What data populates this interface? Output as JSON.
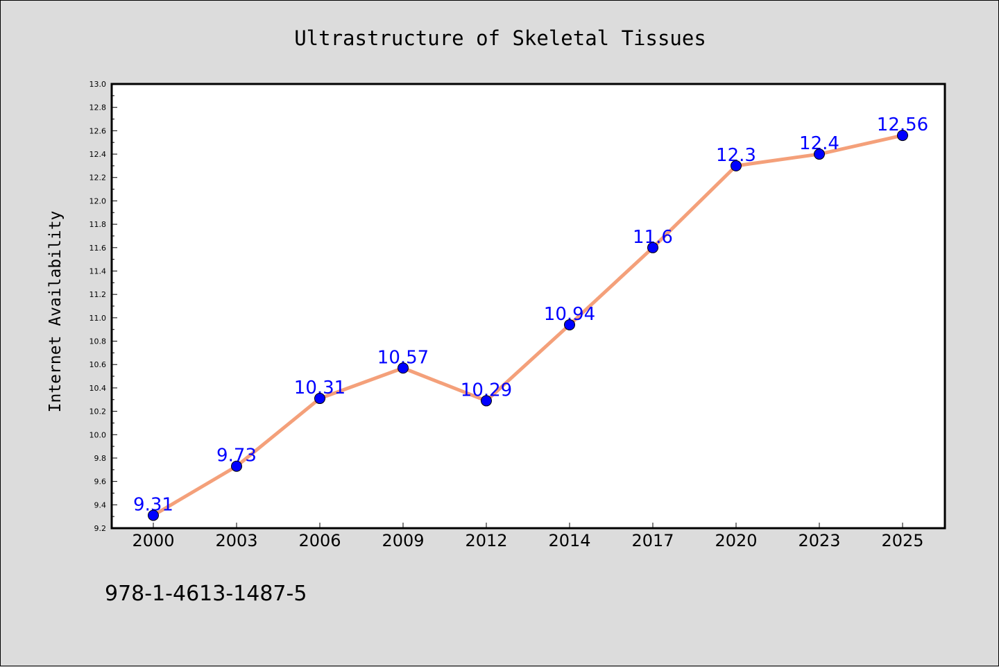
{
  "chart_data": {
    "type": "line",
    "title": "Ultrastructure of Skeletal Tissues",
    "xlabel": "",
    "ylabel": "Internet Availability",
    "categories": [
      "2000",
      "2003",
      "2006",
      "2009",
      "2012",
      "2014",
      "2017",
      "2020",
      "2023",
      "2025"
    ],
    "values": [
      9.31,
      9.73,
      10.31,
      10.57,
      10.29,
      10.94,
      11.6,
      12.3,
      12.4,
      12.56
    ],
    "data_labels": [
      "9.31",
      "9.73",
      "10.31",
      "10.57",
      "10.29",
      "10.94",
      "11.6",
      "12.3",
      "12.4",
      "12.56"
    ],
    "ylim": [
      9.2,
      13.0
    ],
    "ytick_step": 0.2,
    "grid": false,
    "line_color": "#f4a07a",
    "marker_color": "#0000ff",
    "label_color": "#0000ff"
  },
  "footnote": "978-1-4613-1487-5"
}
